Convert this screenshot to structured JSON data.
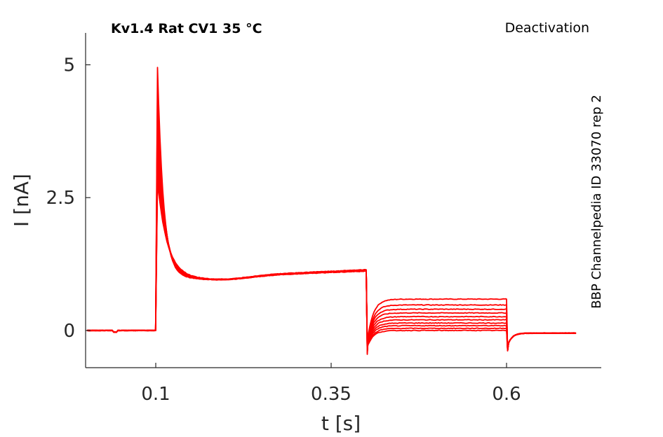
{
  "chart_data": {
    "type": "line",
    "title": "Kv1.4  Rat  CV1  35 °C",
    "corner_label": "Deactivation",
    "side_label": "BBP Channelpedia ID 33070 rep 2",
    "xlabel": "t [s]",
    "ylabel": "I [nA]",
    "xlim": [
      0.0,
      0.735
    ],
    "ylim": [
      -0.7,
      5.6
    ],
    "xticks": [
      0.1,
      0.35,
      0.6
    ],
    "xtick_labels": [
      "0.1",
      "0.35",
      "0.6"
    ],
    "yticks": [
      0,
      2.5,
      5
    ],
    "ytick_labels": [
      "0",
      "2.5",
      "5"
    ],
    "grid": false,
    "line_color": "#ff0000",
    "protocol_times": {
      "start": 0.002,
      "step_on": 0.1,
      "step_off": 0.4,
      "tail_off": 0.6,
      "end": 0.7
    },
    "series": [
      {
        "peak": 4.95,
        "steady": 1.12,
        "tail": 0.59,
        "after": -0.05
      },
      {
        "peak": 4.5,
        "steady": 1.13,
        "tail": 0.48,
        "after": -0.05
      },
      {
        "peak": 4.2,
        "steady": 1.14,
        "tail": 0.4,
        "after": -0.05
      },
      {
        "peak": 3.9,
        "steady": 1.12,
        "tail": 0.33,
        "after": -0.05
      },
      {
        "peak": 3.6,
        "steady": 1.13,
        "tail": 0.26,
        "after": -0.05
      },
      {
        "peak": 3.4,
        "steady": 1.14,
        "tail": 0.2,
        "after": -0.05
      },
      {
        "peak": 3.2,
        "steady": 1.12,
        "tail": 0.14,
        "after": -0.05
      },
      {
        "peak": 3.0,
        "steady": 1.13,
        "tail": 0.09,
        "after": -0.05
      },
      {
        "peak": 2.9,
        "steady": 1.14,
        "tail": 0.04,
        "after": -0.05
      },
      {
        "peak": 2.8,
        "steady": 1.12,
        "tail": 0.0,
        "after": -0.05
      }
    ]
  }
}
